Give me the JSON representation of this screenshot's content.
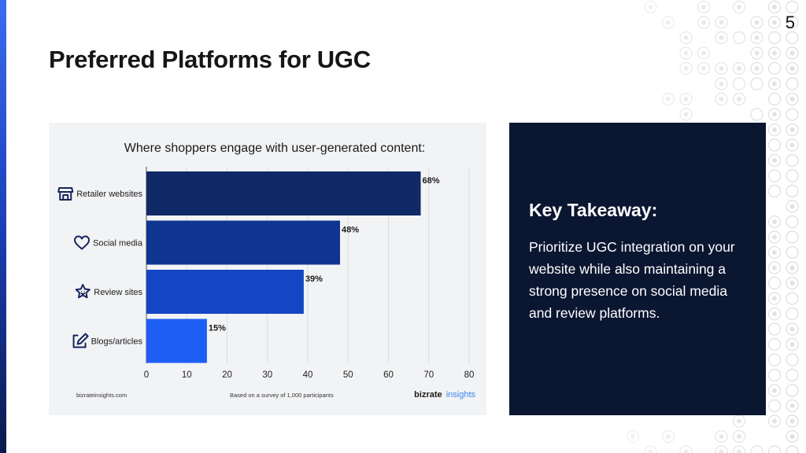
{
  "slide": {
    "title": "Preferred Platforms for UGC",
    "page_number": "5"
  },
  "chart_data": {
    "type": "bar",
    "orientation": "horizontal",
    "title": "Where shoppers engage with user-generated content:",
    "categories": [
      "Retailer websites",
      "Social media",
      "Review sites",
      "Blogs/articles"
    ],
    "values": [
      68,
      48,
      39,
      15
    ],
    "value_labels": [
      "68%",
      "48%",
      "39%",
      "15%"
    ],
    "category_icons": [
      "storefront-icon",
      "heart-icon",
      "star-badge-icon",
      "edit-icon"
    ],
    "bar_colors": [
      "#0f2a66",
      "#0f3590",
      "#1446c4",
      "#1e5ef5"
    ],
    "xlim": [
      0,
      80
    ],
    "xticks": [
      0,
      10,
      20,
      30,
      40,
      50,
      60,
      70,
      80
    ],
    "grid": true,
    "footer_left": "bizrateinsights.com",
    "footer_center": "Based on a survey of 1,000 participants",
    "brand": {
      "primary": "bizrate",
      "secondary": "insights"
    }
  },
  "takeaway": {
    "title": "Key Takeaway:",
    "body": "Prioritize UGC integration on your website while also maintaining a strong presence on social media and review platforms."
  },
  "colors": {
    "accent": "#1b3fb8",
    "panel": "#0b1631",
    "card": "#f2f3f5",
    "brand_blue": "#3a86e8"
  }
}
